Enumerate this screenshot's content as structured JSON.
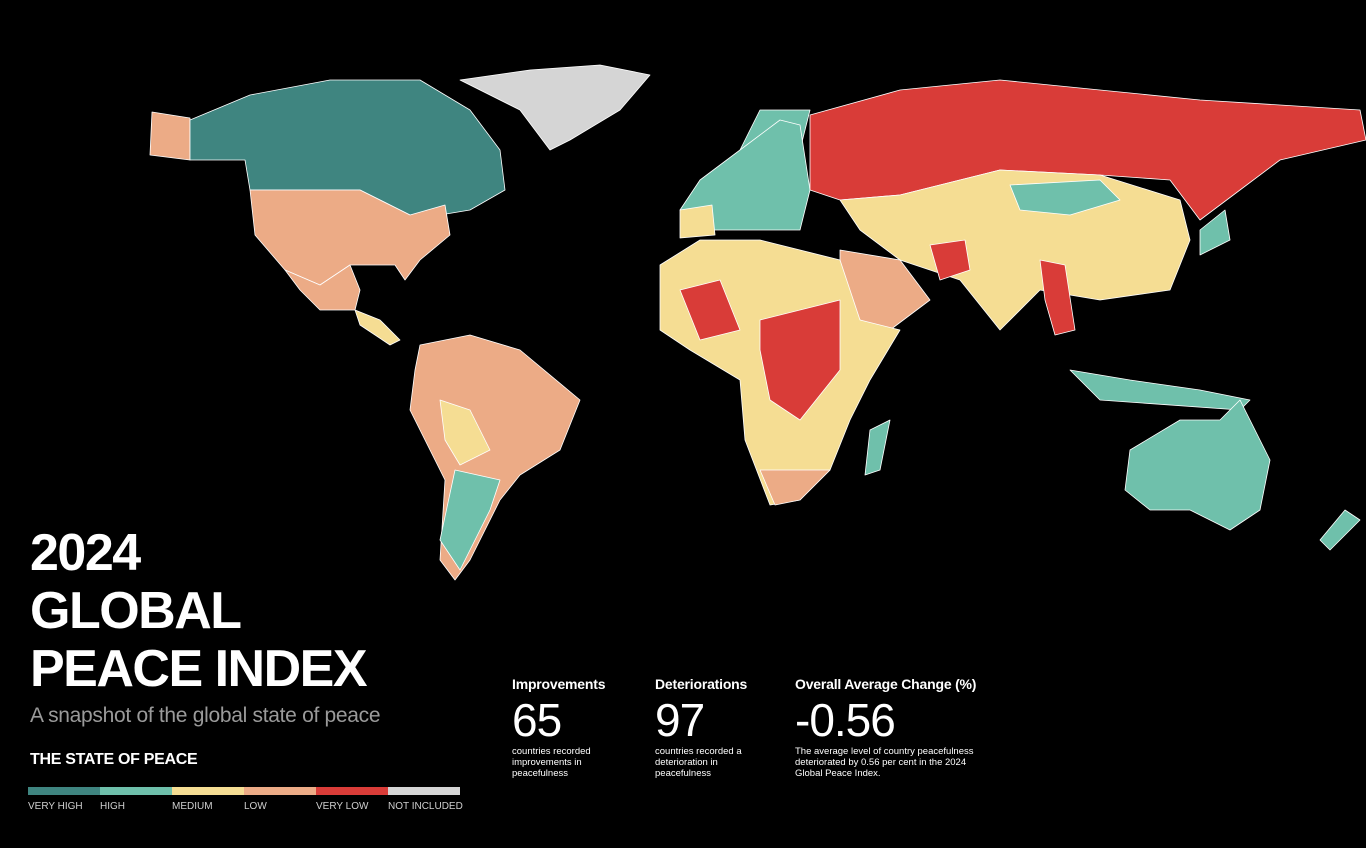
{
  "title_lines": [
    "2024",
    "GLOBAL",
    "PEACE INDEX"
  ],
  "subtitle": "A snapshot of the global state of peace",
  "legend": {
    "title": "THE STATE OF PEACE",
    "items": [
      {
        "label": "VERY HIGH",
        "color": "#3f8580"
      },
      {
        "label": "HIGH",
        "color": "#6fc0ab"
      },
      {
        "label": "MEDIUM",
        "color": "#f5dd93"
      },
      {
        "label": "LOW",
        "color": "#ecab86"
      },
      {
        "label": "VERY LOW",
        "color": "#d93c38"
      },
      {
        "label": "NOT INCLUDED",
        "color": "#d5d5d5"
      }
    ]
  },
  "stats": [
    {
      "label": "Improvements",
      "value": 65,
      "description": "countries recorded improvements in peacefulness"
    },
    {
      "label": "Deteriorations",
      "value": 97,
      "description": "countries recorded a deterioration in peacefulness"
    },
    {
      "label": "Overall Average Change (%)",
      "value": -0.56,
      "description": "The average level of country peacefulness deteriorated by 0.56 per cent in the 2024 Global Peace Index."
    }
  ]
}
